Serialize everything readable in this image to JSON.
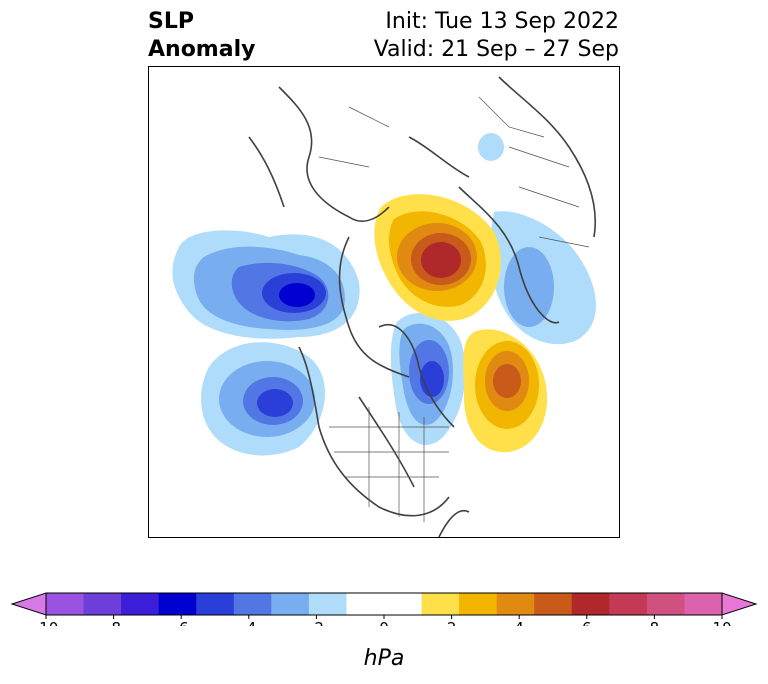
{
  "title": {
    "left_line1": "SLP",
    "left_line2": "Anomaly",
    "right_line1": "Init: Tue 13 Sep 2022",
    "right_line2": "Valid: 21 Sep – 27 Sep"
  },
  "colorbar": {
    "unit": "hPa",
    "ticks": [
      "-10",
      "-8",
      "-6",
      "-4",
      "-2",
      "0",
      "2",
      "4",
      "6",
      "8",
      "10"
    ],
    "colors": [
      "#9a52e0",
      "#6e3ed8",
      "#3b1fd8",
      "#0000d0",
      "#2a3ed8",
      "#5277e4",
      "#78aef0",
      "#aedcfa",
      "#ffffff",
      "#ffffff",
      "#ffe04a",
      "#f2b500",
      "#e08a12",
      "#c85a1a",
      "#b0282a",
      "#c23a55",
      "#d05080",
      "#dc62ad"
    ],
    "extend_low_color": "#d67ae8",
    "extend_high_color": "#e878d8"
  },
  "map": {
    "projection": "north-polar-stereographic",
    "anomalies": [
      {
        "name": "north-pacific-low",
        "sign": "negative",
        "peak_hpa": -7
      },
      {
        "name": "subtropical-pacific-low",
        "sign": "negative",
        "peak_hpa": -5
      },
      {
        "name": "greenland-low",
        "sign": "negative",
        "peak_hpa": -5
      },
      {
        "name": "europe-low",
        "sign": "negative",
        "peak_hpa": -3
      },
      {
        "name": "siberia-low",
        "sign": "negative",
        "peak_hpa": -1
      },
      {
        "name": "arctic-siberian-high",
        "sign": "positive",
        "peak_hpa": 6
      },
      {
        "name": "north-atlantic-high",
        "sign": "positive",
        "peak_hpa": 4
      }
    ]
  }
}
